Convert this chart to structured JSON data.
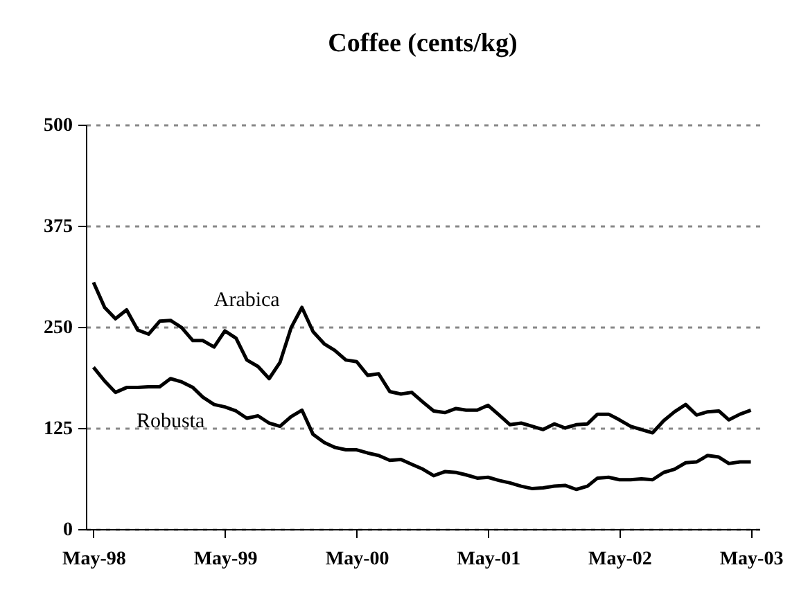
{
  "chart_data": {
    "type": "line",
    "title": "Coffee (cents/kg)",
    "x": [
      "1998-05",
      "1998-06",
      "1998-07",
      "1998-08",
      "1998-09",
      "1998-10",
      "1998-11",
      "1998-12",
      "1999-01",
      "1999-02",
      "1999-03",
      "1999-04",
      "1999-05",
      "1999-06",
      "1999-07",
      "1999-08",
      "1999-09",
      "1999-10",
      "1999-11",
      "1999-12",
      "2000-01",
      "2000-02",
      "2000-03",
      "2000-04",
      "2000-05",
      "2000-06",
      "2000-07",
      "2000-08",
      "2000-09",
      "2000-10",
      "2000-11",
      "2000-12",
      "2001-01",
      "2001-02",
      "2001-03",
      "2001-04",
      "2001-05",
      "2001-06",
      "2001-07",
      "2001-08",
      "2001-09",
      "2001-10",
      "2001-11",
      "2001-12",
      "2002-01",
      "2002-02",
      "2002-03",
      "2002-04",
      "2002-05",
      "2002-06",
      "2002-07",
      "2002-08",
      "2002-09",
      "2002-10",
      "2002-11",
      "2002-12",
      "2003-01",
      "2003-02",
      "2003-03",
      "2003-04",
      "2003-05"
    ],
    "series": [
      {
        "name": "Arabica",
        "color": "#000000",
        "values": [
          305,
          274,
          260,
          271,
          246,
          241,
          257,
          258,
          249,
          233,
          233,
          225,
          245,
          236,
          209,
          201,
          186,
          206,
          249,
          274,
          244,
          229,
          221,
          209,
          207,
          190,
          192,
          170,
          167,
          169,
          157,
          146,
          144,
          149,
          147,
          147,
          153,
          141,
          129,
          131,
          127,
          123,
          130,
          125,
          129,
          130,
          142,
          142,
          135,
          127,
          123,
          119,
          134,
          145,
          154,
          141,
          145,
          146,
          135,
          142,
          147
        ]
      },
      {
        "name": "Robusta",
        "color": "#000000",
        "values": [
          200,
          183,
          169,
          175,
          175,
          176,
          176,
          186,
          182,
          175,
          163,
          154,
          151,
          146,
          137,
          140,
          131,
          127,
          139,
          147,
          117,
          107,
          101,
          98,
          98,
          94,
          91,
          85,
          86,
          80,
          74,
          66,
          71,
          70,
          67,
          63,
          64,
          60,
          57,
          53,
          50,
          51,
          53,
          54,
          49,
          53,
          63,
          64,
          61,
          61,
          62,
          61,
          70,
          74,
          82,
          83,
          91,
          89,
          81,
          83,
          83
        ]
      }
    ],
    "xlim": [
      "1998-04-10",
      "2003-05-25"
    ],
    "xticks": [
      {
        "value": "1998-05",
        "label": "May-98"
      },
      {
        "value": "1999-05",
        "label": "May-99"
      },
      {
        "value": "2000-05",
        "label": "May-00"
      },
      {
        "value": "2001-05",
        "label": "May-01"
      },
      {
        "value": "2002-05",
        "label": "May-02"
      },
      {
        "value": "2003-05",
        "label": "May-03"
      }
    ],
    "ylim": [
      0,
      500
    ],
    "yticks": [
      0,
      125,
      250,
      375,
      500
    ],
    "grid": "y",
    "line_style": "solid",
    "legend": false
  }
}
